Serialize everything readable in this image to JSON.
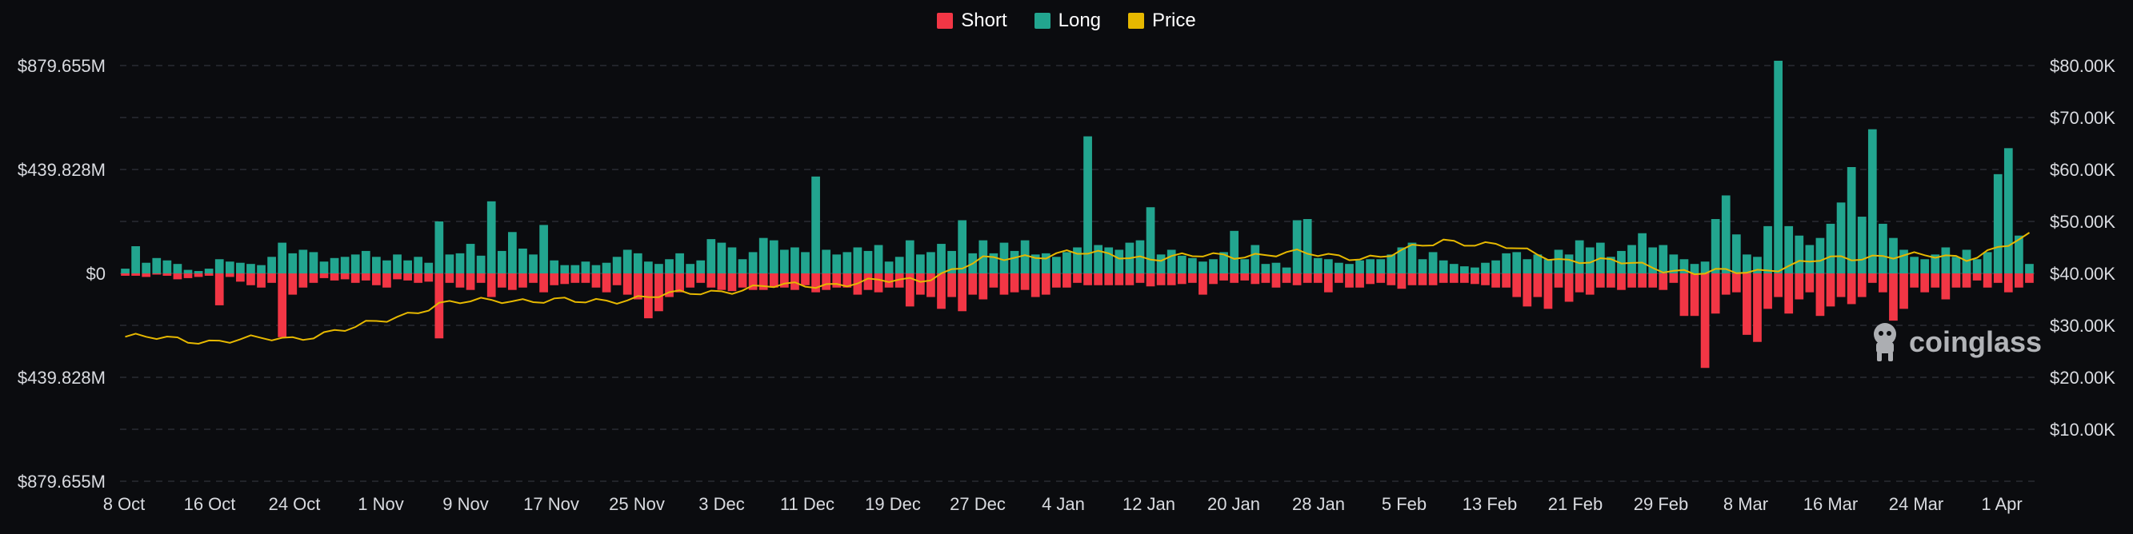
{
  "chart_data": {
    "type": "bar",
    "legend": [
      {
        "name": "Short",
        "color": "#f23645"
      },
      {
        "name": "Long",
        "color": "#22a58f"
      },
      {
        "name": "Price",
        "color": "#e6b800"
      }
    ],
    "legend_position": "top-center",
    "y_left_ticks": [
      "$879.655M",
      "$439.828M",
      "$0",
      "$439.828M",
      "$879.655M"
    ],
    "y_left_range": [
      -879.655,
      879.655
    ],
    "y_right_ticks": [
      "$80.00K",
      "$70.00K",
      "$60.00K",
      "$50.00K",
      "$40.00K",
      "$30.00K",
      "$20.00K",
      "$10.00K"
    ],
    "y_right_range": [
      0,
      80000
    ],
    "x_ticks": [
      "8 Oct",
      "16 Oct",
      "24 Oct",
      "1 Nov",
      "9 Nov",
      "17 Nov",
      "25 Nov",
      "3 Dec",
      "11 Dec",
      "19 Dec",
      "27 Dec",
      "4 Jan",
      "12 Jan",
      "20 Jan",
      "28 Jan",
      "5 Feb",
      "13 Feb",
      "21 Feb",
      "29 Feb",
      "8 Mar",
      "16 Mar",
      "24 Mar",
      "1 Apr"
    ],
    "grid": true,
    "long": [
      20,
      115,
      45,
      65,
      55,
      40,
      15,
      10,
      20,
      60,
      50,
      45,
      40,
      35,
      70,
      130,
      85,
      100,
      90,
      50,
      65,
      70,
      80,
      95,
      70,
      55,
      80,
      55,
      70,
      45,
      220,
      80,
      85,
      125,
      75,
      305,
      95,
      175,
      105,
      80,
      205,
      55,
      35,
      35,
      50,
      35,
      45,
      70,
      100,
      85,
      50,
      40,
      60,
      85,
      40,
      55,
      145,
      130,
      110,
      60,
      90,
      150,
      140,
      100,
      110,
      90,
      410,
      100,
      80,
      90,
      110,
      95,
      120,
      50,
      70,
      140,
      80,
      90,
      125,
      95,
      225,
      85,
      140,
      85,
      130,
      95,
      140,
      80,
      85,
      70,
      90,
      110,
      580,
      120,
      110,
      100,
      130,
      140,
      280,
      80,
      100,
      75,
      65,
      50,
      60,
      90,
      180,
      60,
      120,
      40,
      45,
      25,
      225,
      230,
      65,
      60,
      45,
      40,
      55,
      60,
      60,
      80,
      110,
      130,
      60,
      90,
      55,
      40,
      30,
      25,
      45,
      55,
      85,
      90,
      60,
      80,
      60,
      100,
      80,
      140,
      110,
      130,
      70,
      95,
      120,
      170,
      110,
      120,
      80,
      60,
      40,
      50,
      230,
      330,
      165,
      80,
      70,
      200,
      900,
      200,
      160,
      120,
      150,
      210,
      300,
      450,
      240,
      610,
      210,
      150,
      100,
      70,
      60,
      80,
      110,
      70,
      100,
      60,
      90,
      420,
      530,
      160,
      40
    ],
    "short": [
      10,
      10,
      15,
      5,
      10,
      25,
      20,
      15,
      10,
      135,
      15,
      35,
      50,
      60,
      40,
      270,
      90,
      60,
      40,
      20,
      30,
      25,
      40,
      30,
      50,
      60,
      25,
      30,
      40,
      35,
      275,
      40,
      60,
      70,
      40,
      100,
      60,
      70,
      60,
      40,
      80,
      50,
      45,
      40,
      40,
      60,
      80,
      50,
      90,
      110,
      190,
      160,
      100,
      80,
      60,
      40,
      60,
      70,
      75,
      60,
      70,
      70,
      60,
      60,
      70,
      50,
      80,
      70,
      60,
      60,
      90,
      70,
      80,
      60,
      60,
      140,
      90,
      100,
      150,
      100,
      160,
      90,
      110,
      60,
      90,
      80,
      70,
      100,
      90,
      60,
      60,
      40,
      50,
      50,
      50,
      50,
      50,
      40,
      55,
      50,
      50,
      45,
      40,
      90,
      45,
      30,
      40,
      30,
      45,
      40,
      60,
      40,
      50,
      40,
      40,
      80,
      40,
      60,
      60,
      45,
      40,
      50,
      65,
      50,
      50,
      50,
      40,
      40,
      40,
      45,
      50,
      60,
      60,
      100,
      140,
      100,
      150,
      60,
      120,
      80,
      90,
      60,
      60,
      70,
      60,
      60,
      60,
      70,
      40,
      180,
      180,
      400,
      170,
      90,
      80,
      260,
      290,
      150,
      100,
      170,
      110,
      80,
      180,
      140,
      100,
      130,
      100,
      40,
      80,
      200,
      150,
      60,
      80,
      60,
      110,
      60,
      60,
      30,
      60,
      40,
      80,
      60,
      40
    ]
  }
}
